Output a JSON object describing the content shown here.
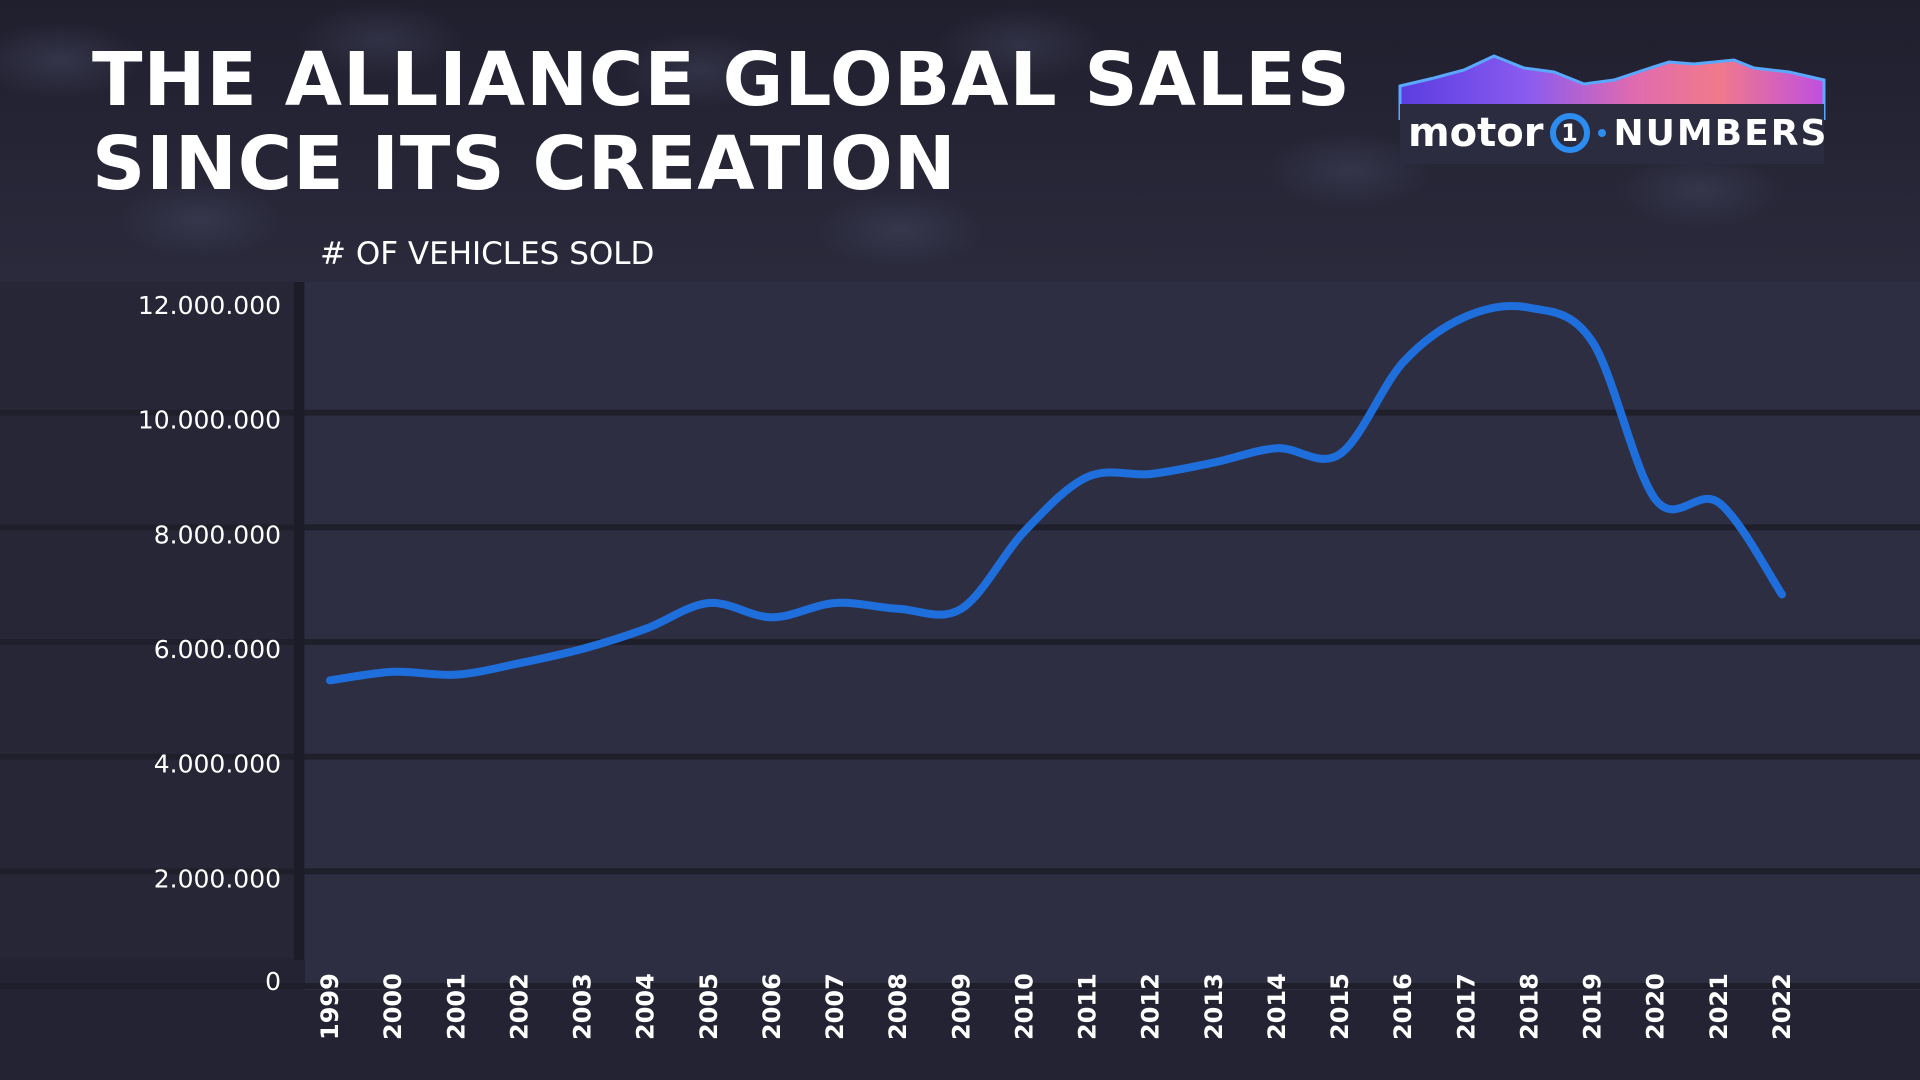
{
  "title_lines": [
    "THE ALLIANCE GLOBAL SALES",
    "SINCE ITS CREATION"
  ],
  "logo": {
    "brand": "motor",
    "mark": "1",
    "suffix": "NUMBERS"
  },
  "colors": {
    "line": "#1e6fdc",
    "background": "#262637",
    "grid": "#1f1f2c",
    "text": "#ffffff"
  },
  "chart_data": {
    "type": "line",
    "title": "THE ALLIANCE GLOBAL SALES SINCE ITS CREATION",
    "ylabel": "# OF VEHICLES SOLD",
    "xlabel": "",
    "ylim": [
      0,
      12000000
    ],
    "yticks": [
      0,
      2000000,
      4000000,
      6000000,
      8000000,
      10000000,
      12000000
    ],
    "ytick_labels": [
      "0",
      "2.000.000",
      "4.000.000",
      "6.000.000",
      "8.000.000",
      "10.000.000",
      "12.000.000"
    ],
    "grid": true,
    "legend": "none",
    "categories": [
      "1999",
      "2000",
      "2001",
      "2002",
      "2003",
      "2004",
      "2005",
      "2006",
      "2007",
      "2008",
      "2009",
      "2010",
      "2011",
      "2012",
      "2013",
      "2014",
      "2015",
      "2016",
      "2017",
      "2018",
      "2019",
      "2020",
      "2021",
      "2022"
    ],
    "series": [
      {
        "values": [
          5400000,
          5550000,
          5500000,
          5700000,
          5950000,
          6300000,
          6750000,
          6500000,
          6750000,
          6650000,
          6650000,
          8000000,
          8950000,
          9000000,
          9200000,
          9450000,
          9350000,
          10950000,
          11750000,
          11900000,
          11300000,
          8550000,
          8500000,
          6900000
        ]
      }
    ]
  }
}
